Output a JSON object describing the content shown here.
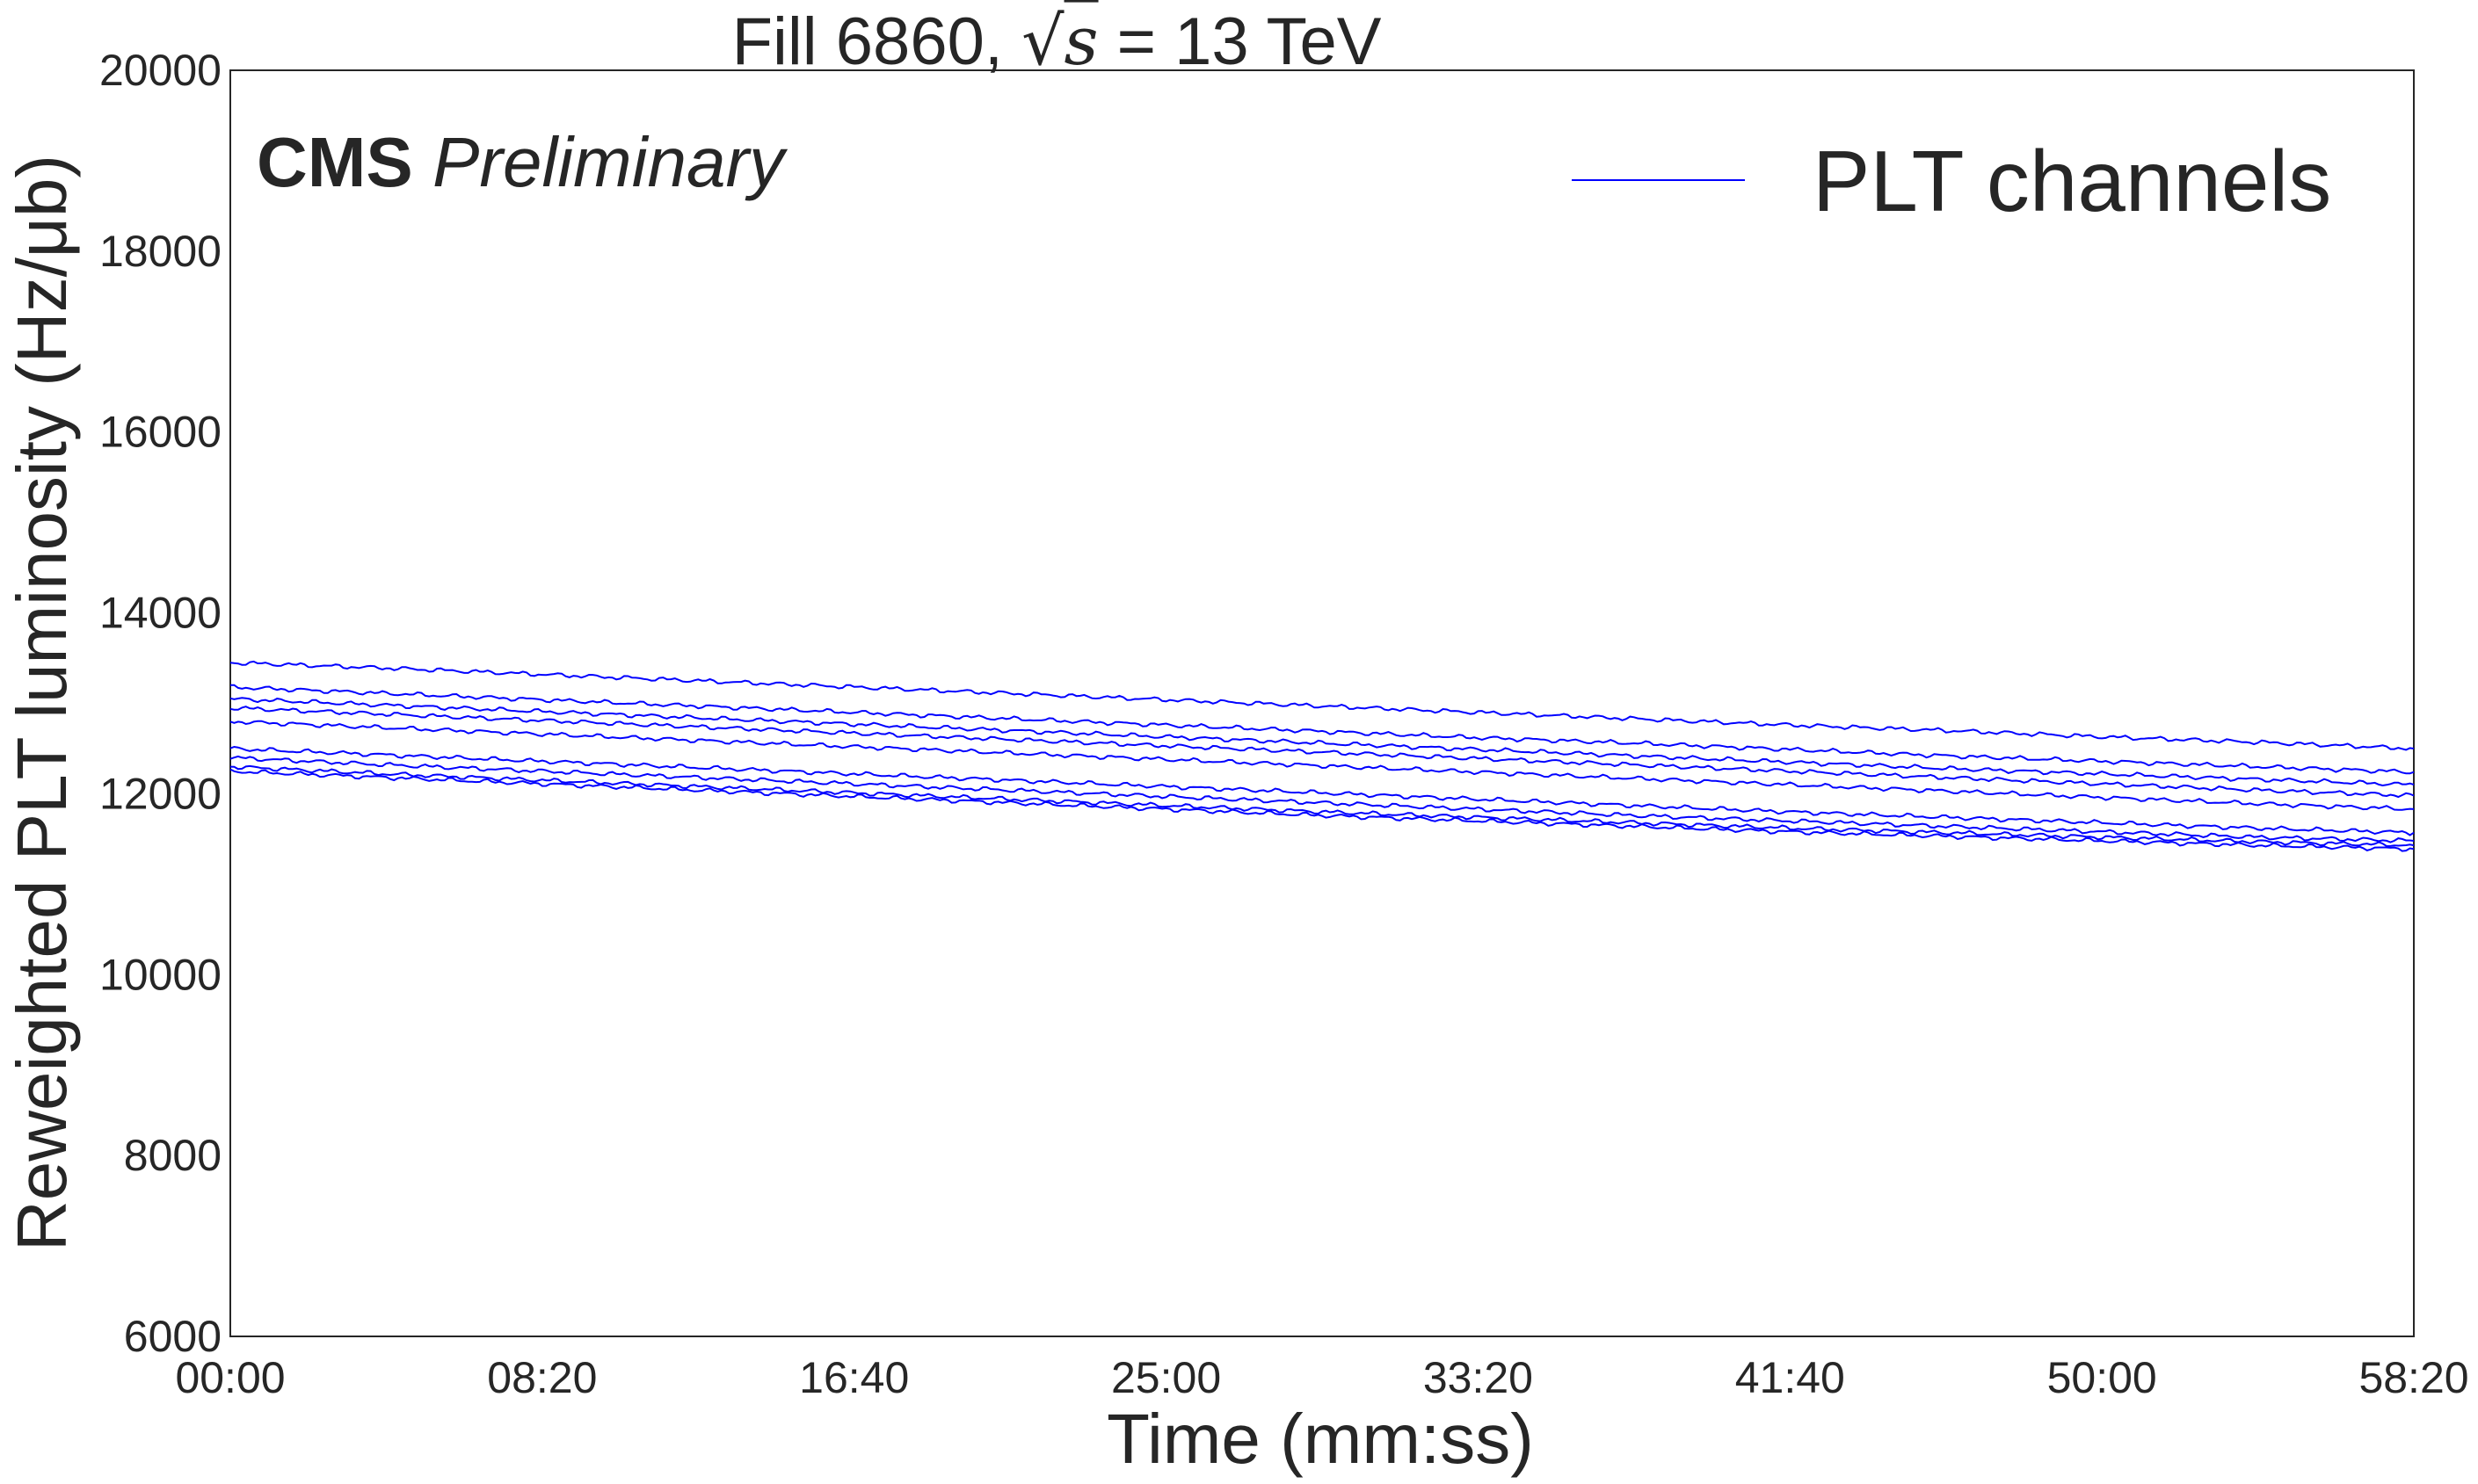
{
  "chart_data": {
    "type": "line",
    "title": "Fill 6860, √s = 13 TeV",
    "title_parts": {
      "before": "Fill 6860, ",
      "sqrt_arg": "s",
      "after": " = 13 TeV"
    },
    "xlabel": "Time (mm:ss)",
    "ylabel": "Reweighted PLT luminosity (Hz/μb)",
    "experiment_label": "CMS",
    "status_label": "Preliminary",
    "x_unit": "seconds",
    "xlim": [
      0,
      3500
    ],
    "ylim": [
      6000,
      20000
    ],
    "x_ticks": [
      {
        "value": 0,
        "label": "00:00"
      },
      {
        "value": 500,
        "label": "08:20"
      },
      {
        "value": 1000,
        "label": "16:40"
      },
      {
        "value": 1500,
        "label": "25:00"
      },
      {
        "value": 2000,
        "label": "33:20"
      },
      {
        "value": 2500,
        "label": "41:40"
      },
      {
        "value": 3000,
        "label": "50:00"
      },
      {
        "value": 3500,
        "label": "58:20"
      }
    ],
    "y_ticks": [
      {
        "value": 6000,
        "label": "6000"
      },
      {
        "value": 8000,
        "label": "8000"
      },
      {
        "value": 10000,
        "label": "10000"
      },
      {
        "value": 12000,
        "label": "12000"
      },
      {
        "value": 14000,
        "label": "14000"
      },
      {
        "value": 16000,
        "label": "16000"
      },
      {
        "value": 18000,
        "label": "18000"
      },
      {
        "value": 20000,
        "label": "20000"
      }
    ],
    "grid": false,
    "legend": {
      "position": "top-right",
      "label": "PLT channels"
    },
    "color": "#0000ff",
    "x": [
      0,
      250,
      500,
      750,
      1000,
      1250,
      1500,
      1750,
      2000,
      2250,
      2500,
      2750,
      3000,
      3250,
      3500
    ],
    "series": [
      {
        "values": [
          13450,
          13390,
          13320,
          13250,
          13180,
          13110,
          13040,
          12970,
          12900,
          12830,
          12760,
          12700,
          12630,
          12570,
          12500
        ]
      },
      {
        "values": [
          13180,
          13110,
          13040,
          12970,
          12900,
          12830,
          12760,
          12690,
          12620,
          12560,
          12490,
          12420,
          12360,
          12300,
          12240
        ]
      },
      {
        "values": [
          13050,
          12980,
          12910,
          12840,
          12770,
          12700,
          12630,
          12560,
          12490,
          12420,
          12350,
          12280,
          12220,
          12160,
          12100
        ]
      },
      {
        "values": [
          12950,
          12880,
          12810,
          12740,
          12670,
          12600,
          12530,
          12460,
          12390,
          12320,
          12250,
          12180,
          12110,
          12040,
          11980
        ]
      },
      {
        "values": [
          12800,
          12730,
          12660,
          12590,
          12520,
          12450,
          12380,
          12310,
          12240,
          12170,
          12100,
          12030,
          11960,
          11890,
          11830
        ]
      },
      {
        "values": [
          12500,
          12430,
          12360,
          12290,
          12220,
          12150,
          12080,
          12010,
          11940,
          11870,
          11800,
          11740,
          11680,
          11620,
          11570
        ]
      },
      {
        "values": [
          12400,
          12320,
          12250,
          12180,
          12110,
          12040,
          11970,
          11900,
          11830,
          11760,
          11700,
          11640,
          11580,
          11520,
          11480
        ]
      },
      {
        "values": [
          12300,
          12220,
          12150,
          12080,
          12010,
          11940,
          11870,
          11800,
          11740,
          11680,
          11620,
          11570,
          11520,
          11470,
          11430
        ]
      },
      {
        "values": [
          12250,
          12180,
          12110,
          12040,
          11970,
          11900,
          11830,
          11760,
          11700,
          11640,
          11580,
          11530,
          11480,
          11430,
          11390
        ]
      }
    ]
  }
}
